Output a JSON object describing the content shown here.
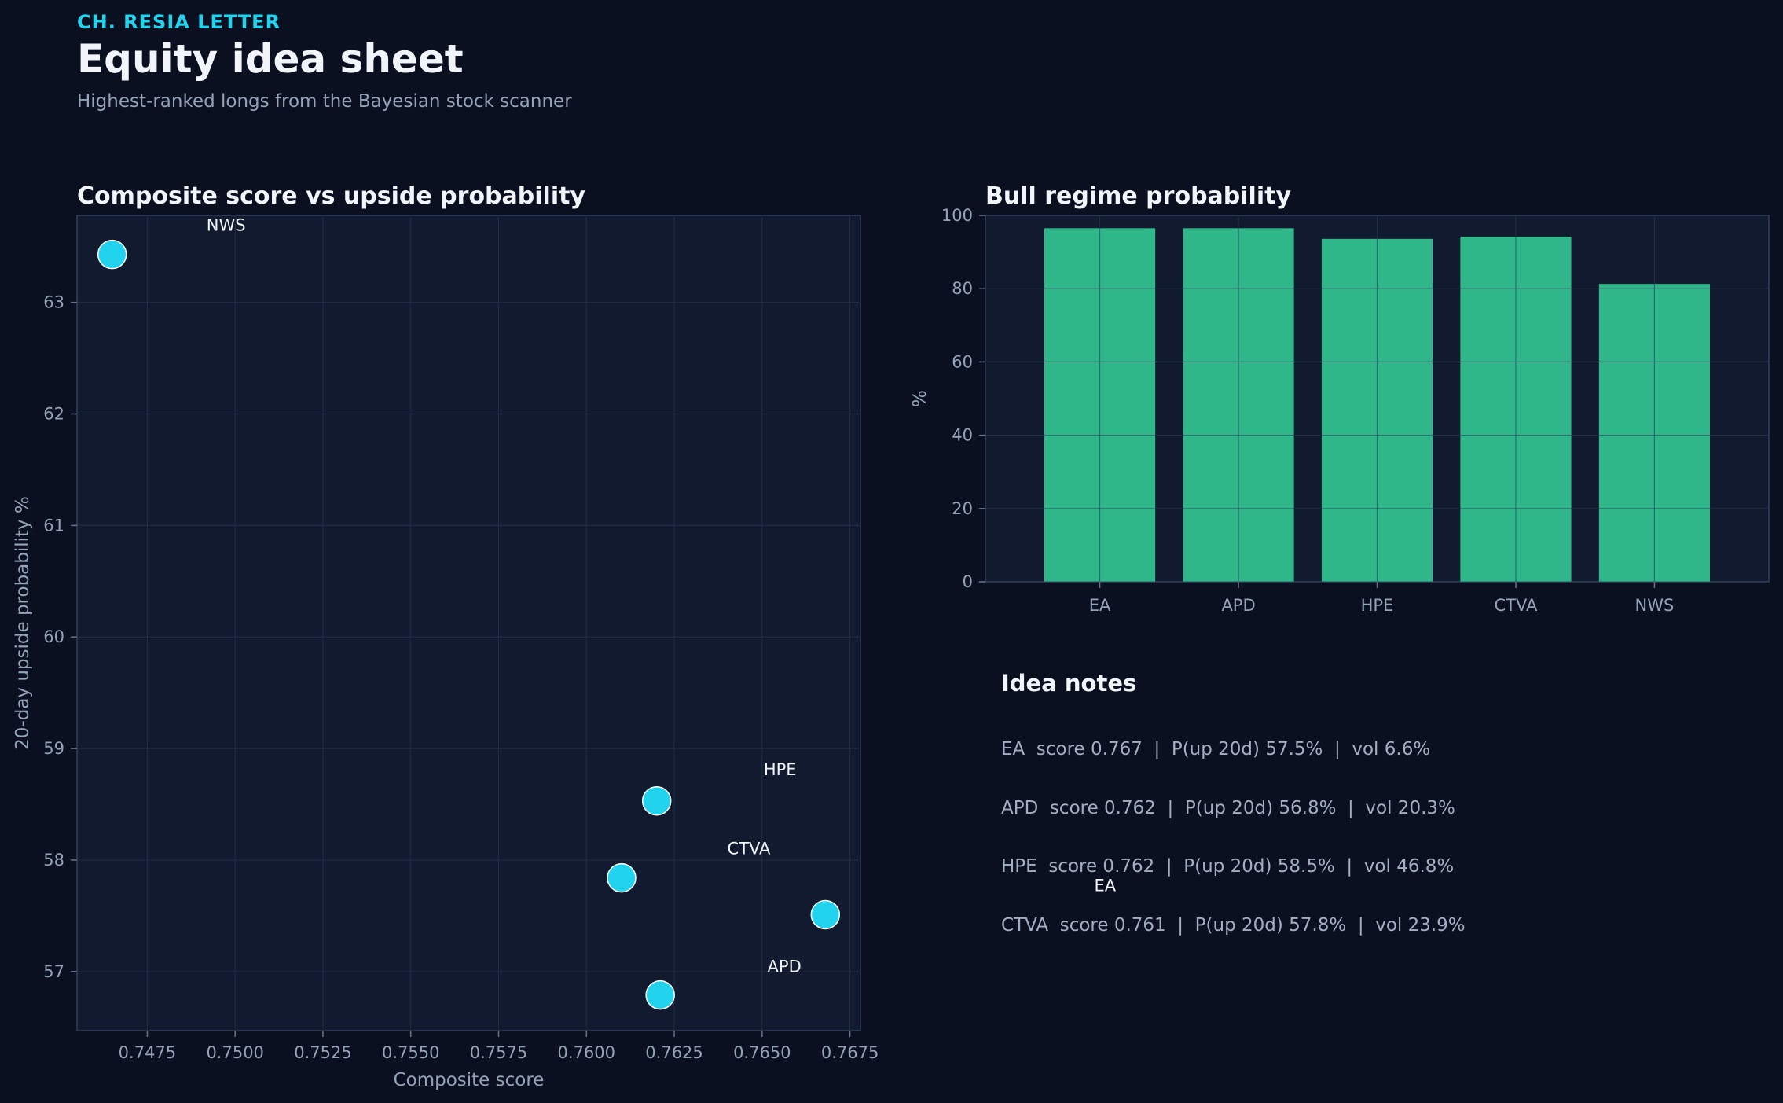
{
  "header": {
    "kicker": "CH. RESIA LETTER",
    "title": "Equity idea sheet",
    "subtitle": "Highest-ranked longs from the Bayesian stock scanner"
  },
  "colors": {
    "background": "#0a1020",
    "panel": "#111a2e",
    "accent": "#22d3ee",
    "bar": "#2fb78a",
    "muted": "#94a3b8"
  },
  "chart_data": [
    {
      "type": "scatter",
      "title": "Composite score vs upside probability",
      "xlabel": "Composite score",
      "ylabel": "20-day upside probability %",
      "xlim": [
        0.7455,
        0.7678
      ],
      "ylim": [
        56.47,
        63.78
      ],
      "xticks": [
        0.7475,
        0.75,
        0.7525,
        0.755,
        0.7575,
        0.76,
        0.7625,
        0.765,
        0.7675
      ],
      "xtick_labels": [
        "0.7475",
        "0.7500",
        "0.7525",
        "0.7550",
        "0.7575",
        "0.7600",
        "0.7625",
        "0.7650",
        "0.7675"
      ],
      "yticks": [
        57,
        58,
        59,
        60,
        61,
        62,
        63
      ],
      "grid": true,
      "points": [
        {
          "label": "NWS",
          "x": 0.7465,
          "y": 63.43
        },
        {
          "label": "HPE",
          "x": 0.762,
          "y": 58.53
        },
        {
          "label": "CTVA",
          "x": 0.761,
          "y": 57.84
        },
        {
          "label": "EA",
          "x": 0.7668,
          "y": 57.51
        },
        {
          "label": "APD",
          "x": 0.7621,
          "y": 56.79
        }
      ]
    },
    {
      "type": "bar",
      "title": "Bull regime probability",
      "ylabel": "%",
      "ylim": [
        0,
        100
      ],
      "yticks": [
        0,
        20,
        40,
        60,
        80,
        100
      ],
      "grid": true,
      "categories": [
        "EA",
        "APD",
        "HPE",
        "CTVA",
        "NWS"
      ],
      "values": [
        96.5,
        96.5,
        93.6,
        94.2,
        81.3
      ]
    }
  ],
  "notes": {
    "title": "Idea notes",
    "items": [
      "EA  score 0.767  |  P(up 20d) 57.5%  |  vol 6.6%",
      "APD  score 0.762  |  P(up 20d) 56.8%  |  vol 20.3%",
      "HPE  score 0.762  |  P(up 20d) 58.5%  |  vol 46.8%",
      "CTVA  score 0.761  |  P(up 20d) 57.8%  |  vol 23.9%"
    ]
  }
}
